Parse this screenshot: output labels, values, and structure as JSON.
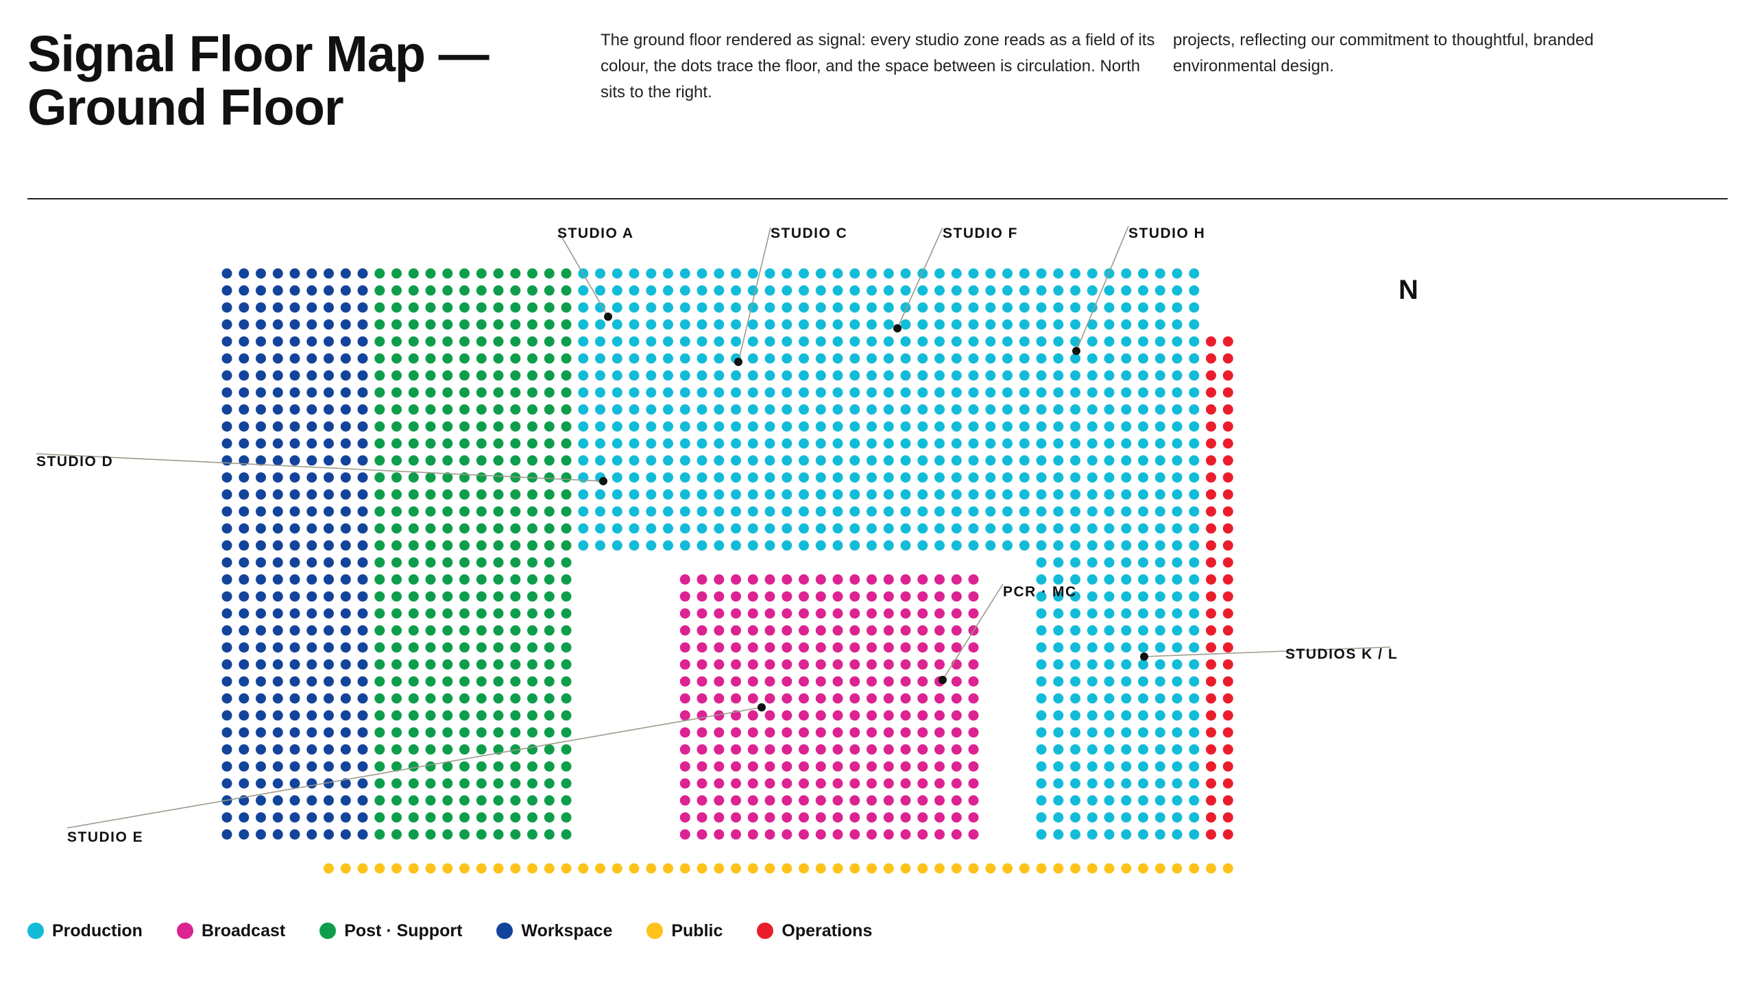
{
  "title": {
    "line1": "Signal Floor Map —",
    "line2": "Ground Floor"
  },
  "description": {
    "col1": "The ground floor rendered as signal: every studio zone reads as a field of its colour, the dots trace the floor, and the space between is circulation. North sits to the right.",
    "col2": "projects, reflecting our commitment to thoughtful, branded environmental design."
  },
  "north_label": "N",
  "zones": [
    {
      "key": "production",
      "label": "Production",
      "color": "#12BCD8"
    },
    {
      "key": "broadcast",
      "label": "Broadcast",
      "color": "#DC2391"
    },
    {
      "key": "post_support",
      "label": "Post · Support",
      "color": "#0E9E4B"
    },
    {
      "key": "workspace",
      "label": "Workspace",
      "color": "#13449B"
    },
    {
      "key": "public",
      "label": "Public",
      "color": "#FFC21A"
    },
    {
      "key": "operations",
      "label": "Operations",
      "color": "#EB1D2D"
    }
  ],
  "callouts": [
    {
      "label": "STUDIO A"
    },
    {
      "label": "STUDIO C"
    },
    {
      "label": "STUDIO F"
    },
    {
      "label": "STUDIO H"
    },
    {
      "label": "STUDIO D"
    },
    {
      "label": "PCR · MC"
    },
    {
      "label": "STUDIOS K / L"
    },
    {
      "label": "STUDIO E"
    }
  ]
}
